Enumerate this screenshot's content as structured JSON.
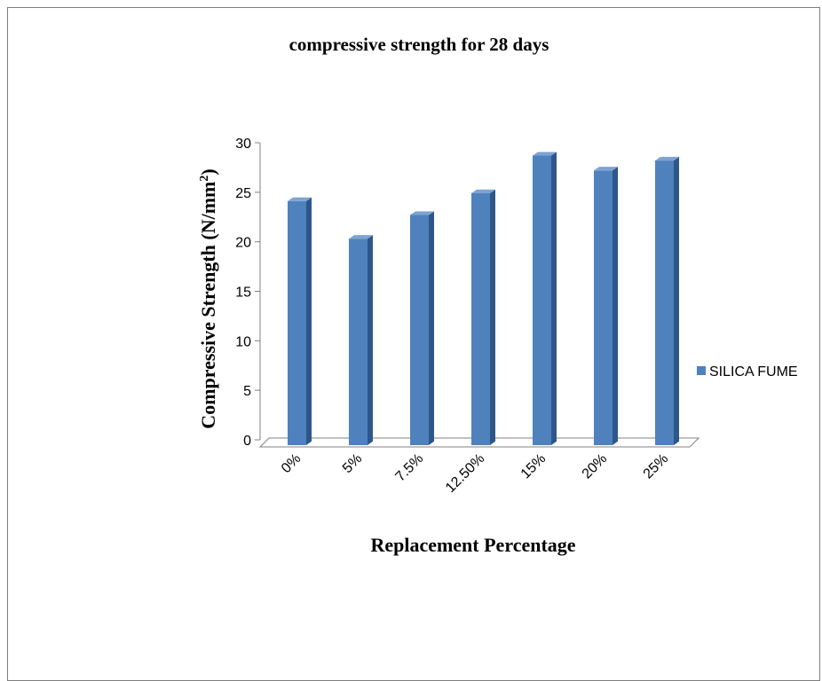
{
  "chart_data": {
    "type": "bar",
    "title": "compressive strength for 28 days",
    "xlabel": "Replacement Percentage",
    "ylabel": "Compressive Strength (N/mm",
    "ylabel_superscript": "2",
    "ylabel_suffix": ")",
    "categories": [
      "0%",
      "5%",
      "7.5%",
      "12.50%",
      "15%",
      "20%",
      "25%"
    ],
    "y_ticks": [
      "0",
      "5",
      "10",
      "15",
      "20",
      "25",
      "30"
    ],
    "ylim": [
      0,
      30
    ],
    "series": [
      {
        "name": "SILICA FUME",
        "values": [
          24.1,
          20.3,
          22.7,
          24.9,
          28.7,
          27.2,
          28.2
        ]
      }
    ],
    "legend_position": "right",
    "grid": false,
    "style": "3d-column"
  },
  "colors": {
    "bar_front": "#4f81bd",
    "bar_side": "#2e5689",
    "bar_top": "#7da3d1",
    "axis": "#808080"
  }
}
